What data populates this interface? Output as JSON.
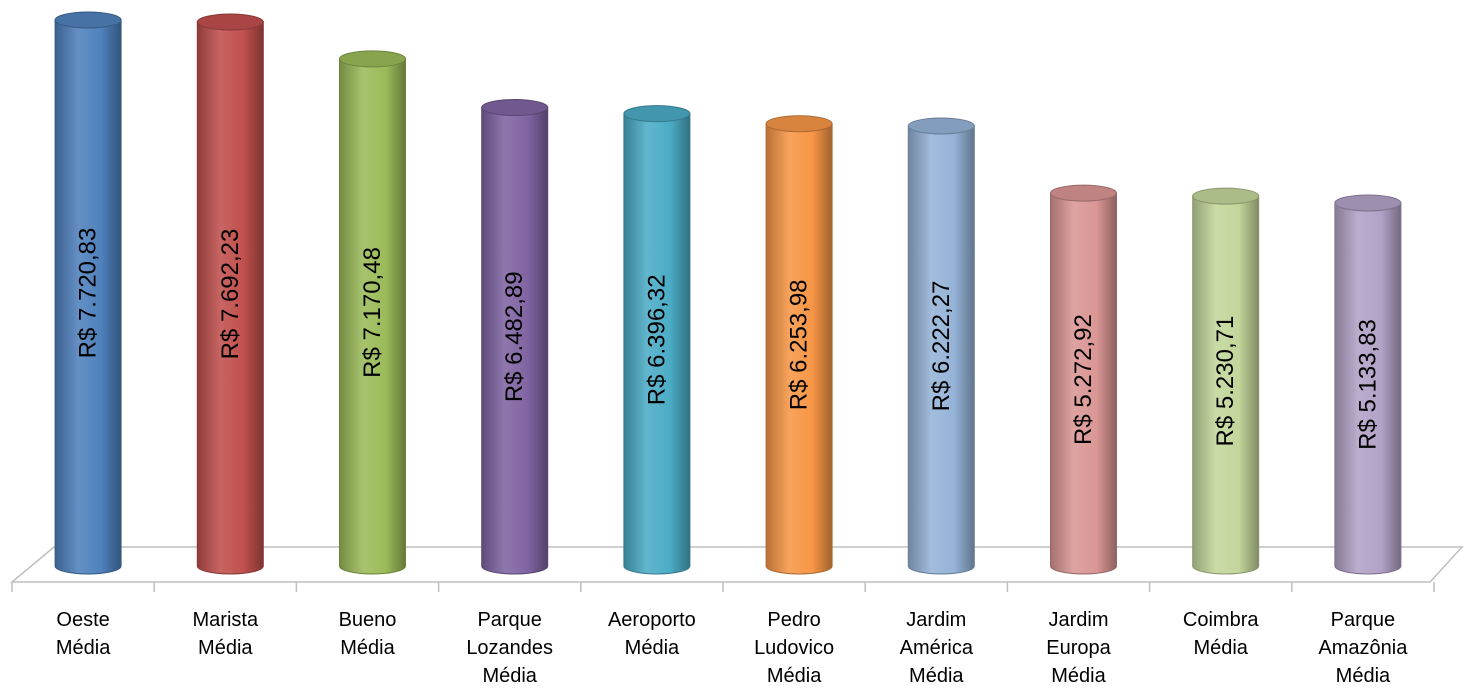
{
  "chart_data": {
    "type": "bar",
    "style": "3d-cylinder",
    "categories": [
      [
        "Oeste",
        "Média"
      ],
      [
        "Marista",
        "Média"
      ],
      [
        "Bueno",
        "Média"
      ],
      [
        "Parque",
        "Lozandes",
        "Média"
      ],
      [
        "Aeroporto",
        "Média"
      ],
      [
        "Pedro",
        "Ludovico",
        "Média"
      ],
      [
        "Jardim",
        "América",
        "Média"
      ],
      [
        "Jardim",
        "Europa",
        "Média"
      ],
      [
        "Coimbra",
        "Média"
      ],
      [
        "Parque",
        "Amazônia",
        "Média"
      ]
    ],
    "values": [
      7720.83,
      7692.23,
      7170.48,
      6482.89,
      6396.32,
      6253.98,
      6222.27,
      5272.92,
      5230.71,
      5133.83
    ],
    "value_labels": [
      "R$ 7.720,83",
      "R$ 7.692,23",
      "R$ 7.170,48",
      "R$ 6.482,89",
      "R$ 6.396,32",
      "R$ 6.253,98",
      "R$ 6.222,27",
      "R$ 5.272,92",
      "R$ 5.230,71",
      "R$ 5.133,83"
    ],
    "colors": [
      "#4F81BD",
      "#C0504D",
      "#9BBB59",
      "#8064A2",
      "#4BACC6",
      "#F79646",
      "#95B3D7",
      "#D99694",
      "#C3D69B",
      "#B2A2C7"
    ],
    "ylim": [
      0,
      7720.83
    ],
    "grid": false,
    "legend": "none",
    "title": "",
    "xlabel": "",
    "ylabel": ""
  }
}
